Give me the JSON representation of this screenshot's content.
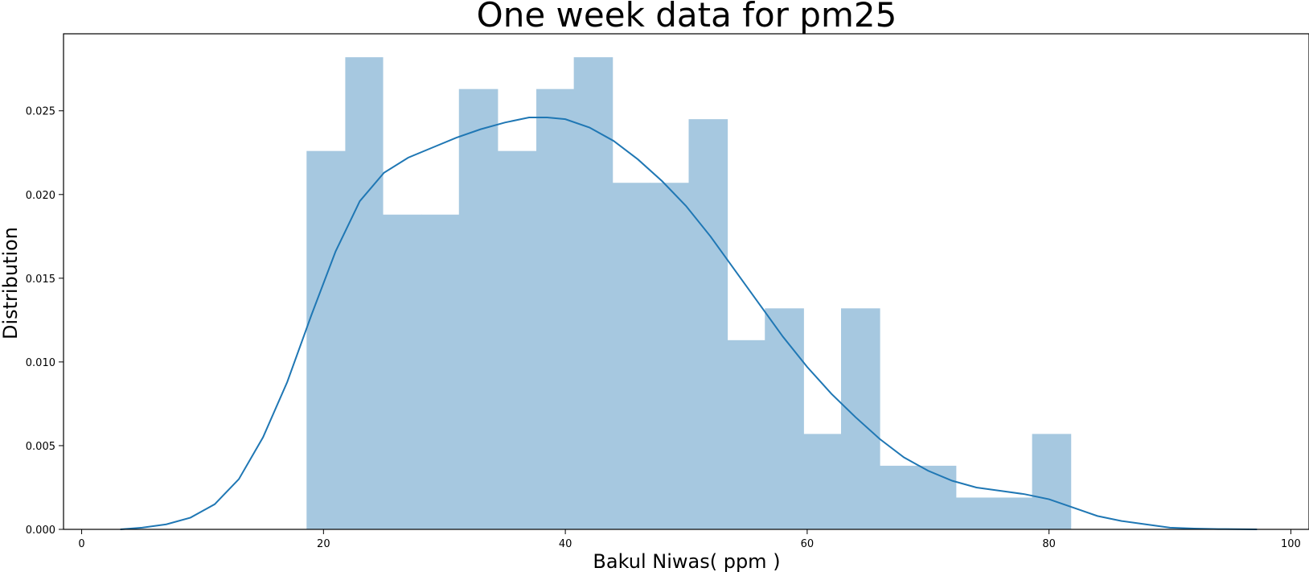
{
  "chart_data": {
    "type": "histogram",
    "title": "One week data for pm25",
    "xlabel": "Bakul Niwas( ppm )",
    "ylabel": "Distribution",
    "xlim": [
      -1.5,
      101.5
    ],
    "ylim": [
      0,
      0.0296
    ],
    "xticks": [
      0,
      20,
      40,
      60,
      80,
      100
    ],
    "xtick_labels": [
      "0",
      "20",
      "40",
      "60",
      "80",
      "100"
    ],
    "yticks": [
      0.0,
      0.005,
      0.01,
      0.015,
      0.02,
      0.025
    ],
    "ytick_labels": [
      "0.000",
      "0.005",
      "0.010",
      "0.015",
      "0.020",
      "0.025"
    ],
    "grid": false,
    "bar_color": "#a6c8e0",
    "line_color": "#1f77b4",
    "bins": [
      {
        "x0": 18.6,
        "x1": 21.8,
        "value": 0.0226
      },
      {
        "x0": 21.8,
        "x1": 24.9,
        "value": 0.0282
      },
      {
        "x0": 24.9,
        "x1": 28.1,
        "value": 0.0188
      },
      {
        "x0": 28.1,
        "x1": 31.2,
        "value": 0.0188
      },
      {
        "x0": 31.2,
        "x1": 34.4,
        "value": 0.0263
      },
      {
        "x0": 34.4,
        "x1": 37.6,
        "value": 0.0226
      },
      {
        "x0": 37.6,
        "x1": 40.7,
        "value": 0.0263
      },
      {
        "x0": 40.7,
        "x1": 43.9,
        "value": 0.0282
      },
      {
        "x0": 43.9,
        "x1": 47.0,
        "value": 0.0207
      },
      {
        "x0": 47.0,
        "x1": 50.2,
        "value": 0.0207
      },
      {
        "x0": 50.2,
        "x1": 53.4,
        "value": 0.0245
      },
      {
        "x0": 53.4,
        "x1": 56.5,
        "value": 0.0113
      },
      {
        "x0": 56.5,
        "x1": 59.7,
        "value": 0.0132
      },
      {
        "x0": 59.7,
        "x1": 62.8,
        "value": 0.0057
      },
      {
        "x0": 62.8,
        "x1": 66.0,
        "value": 0.0132
      },
      {
        "x0": 66.0,
        "x1": 69.2,
        "value": 0.0038
      },
      {
        "x0": 69.2,
        "x1": 72.3,
        "value": 0.0038
      },
      {
        "x0": 72.3,
        "x1": 75.5,
        "value": 0.0019
      },
      {
        "x0": 75.5,
        "x1": 78.6,
        "value": 0.0019
      },
      {
        "x0": 78.6,
        "x1": 81.8,
        "value": 0.0057
      }
    ],
    "kde": {
      "x": [
        3.2,
        5,
        7,
        9,
        11,
        13,
        15,
        17,
        19,
        21,
        23,
        25,
        27,
        29,
        31,
        33,
        35,
        37,
        38.5,
        40,
        42,
        44,
        46,
        48,
        50,
        52,
        54,
        56,
        58,
        60,
        62,
        64,
        66,
        68,
        70,
        72,
        74,
        76,
        78,
        80,
        82,
        84,
        86,
        88,
        90,
        92,
        94,
        97.2
      ],
      "y": [
        0.0,
        0.0001,
        0.0003,
        0.0007,
        0.0015,
        0.003,
        0.0055,
        0.0088,
        0.0128,
        0.0166,
        0.0196,
        0.0213,
        0.0222,
        0.0228,
        0.0234,
        0.0239,
        0.0243,
        0.0246,
        0.0246,
        0.0245,
        0.024,
        0.0232,
        0.0221,
        0.0208,
        0.0193,
        0.0175,
        0.0155,
        0.0135,
        0.0115,
        0.0097,
        0.0081,
        0.0067,
        0.0054,
        0.0043,
        0.0035,
        0.0029,
        0.0025,
        0.0023,
        0.0021,
        0.0018,
        0.0013,
        0.0008,
        0.0005,
        0.0003,
        0.0001,
        5e-05,
        2e-05,
        0.0
      ]
    }
  }
}
